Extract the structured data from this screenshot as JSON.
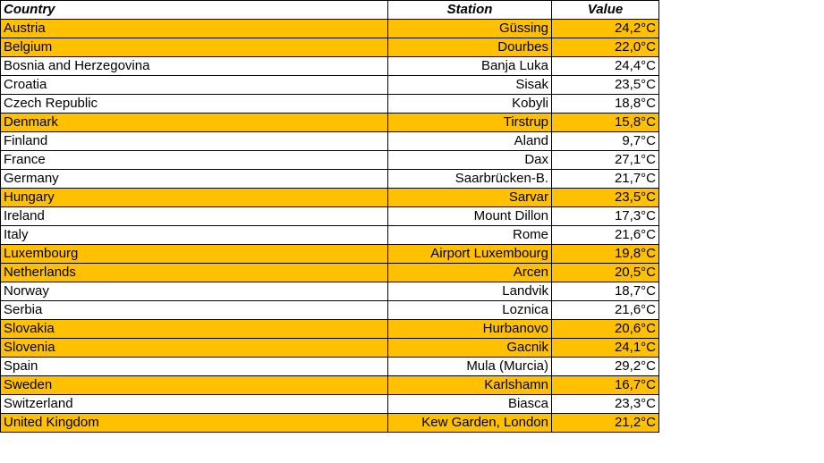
{
  "table": {
    "headers": {
      "country": "Country",
      "station": "Station",
      "value": "Value"
    },
    "highlight_color": "#ffc000",
    "rows": [
      {
        "country": "Austria",
        "station": "Güssing",
        "value": "24,2°C",
        "highlighted": true
      },
      {
        "country": "Belgium",
        "station": "Dourbes",
        "value": "22,0°C",
        "highlighted": true
      },
      {
        "country": "Bosnia and Herzegovina",
        "station": "Banja Luka",
        "value": "24,4°C",
        "highlighted": false
      },
      {
        "country": "Croatia",
        "station": "Sisak",
        "value": "23,5°C",
        "highlighted": false
      },
      {
        "country": "Czech Republic",
        "station": "Kobyli",
        "value": "18,8°C",
        "highlighted": false
      },
      {
        "country": "Denmark",
        "station": "Tirstrup",
        "value": "15,8°C",
        "highlighted": true
      },
      {
        "country": "Finland",
        "station": "Aland",
        "value": "9,7°C",
        "highlighted": false
      },
      {
        "country": "France",
        "station": "Dax",
        "value": "27,1°C",
        "highlighted": false
      },
      {
        "country": "Germany",
        "station": "Saarbrücken-B.",
        "value": "21,7°C",
        "highlighted": false
      },
      {
        "country": "Hungary",
        "station": "Sarvar",
        "value": "23,5°C",
        "highlighted": true
      },
      {
        "country": "Ireland",
        "station": "Mount Dillon",
        "value": "17,3°C",
        "highlighted": false
      },
      {
        "country": "Italy",
        "station": "Rome",
        "value": "21,6°C",
        "highlighted": false
      },
      {
        "country": "Luxembourg",
        "station": "Airport Luxembourg",
        "value": "19,8°C",
        "highlighted": true
      },
      {
        "country": "Netherlands",
        "station": "Arcen",
        "value": "20,5°C",
        "highlighted": true
      },
      {
        "country": "Norway",
        "station": "Landvik",
        "value": "18,7°C",
        "highlighted": false
      },
      {
        "country": "Serbia",
        "station": "Loznica",
        "value": "21,6°C",
        "highlighted": false
      },
      {
        "country": "Slovakia",
        "station": "Hurbanovo",
        "value": "20,6°C",
        "highlighted": true
      },
      {
        "country": "Slovenia",
        "station": "Gacnik",
        "value": "24,1°C",
        "highlighted": true
      },
      {
        "country": "Spain",
        "station": "Mula (Murcia)",
        "value": "29,2°C",
        "highlighted": false
      },
      {
        "country": "Sweden",
        "station": "Karlshamn",
        "value": "16,7°C",
        "highlighted": true
      },
      {
        "country": "Switzerland",
        "station": "Biasca",
        "value": "23,3°C",
        "highlighted": false
      },
      {
        "country": "United Kingdom",
        "station": "Kew Garden, London",
        "value": "21,2°C",
        "highlighted": true
      }
    ]
  }
}
